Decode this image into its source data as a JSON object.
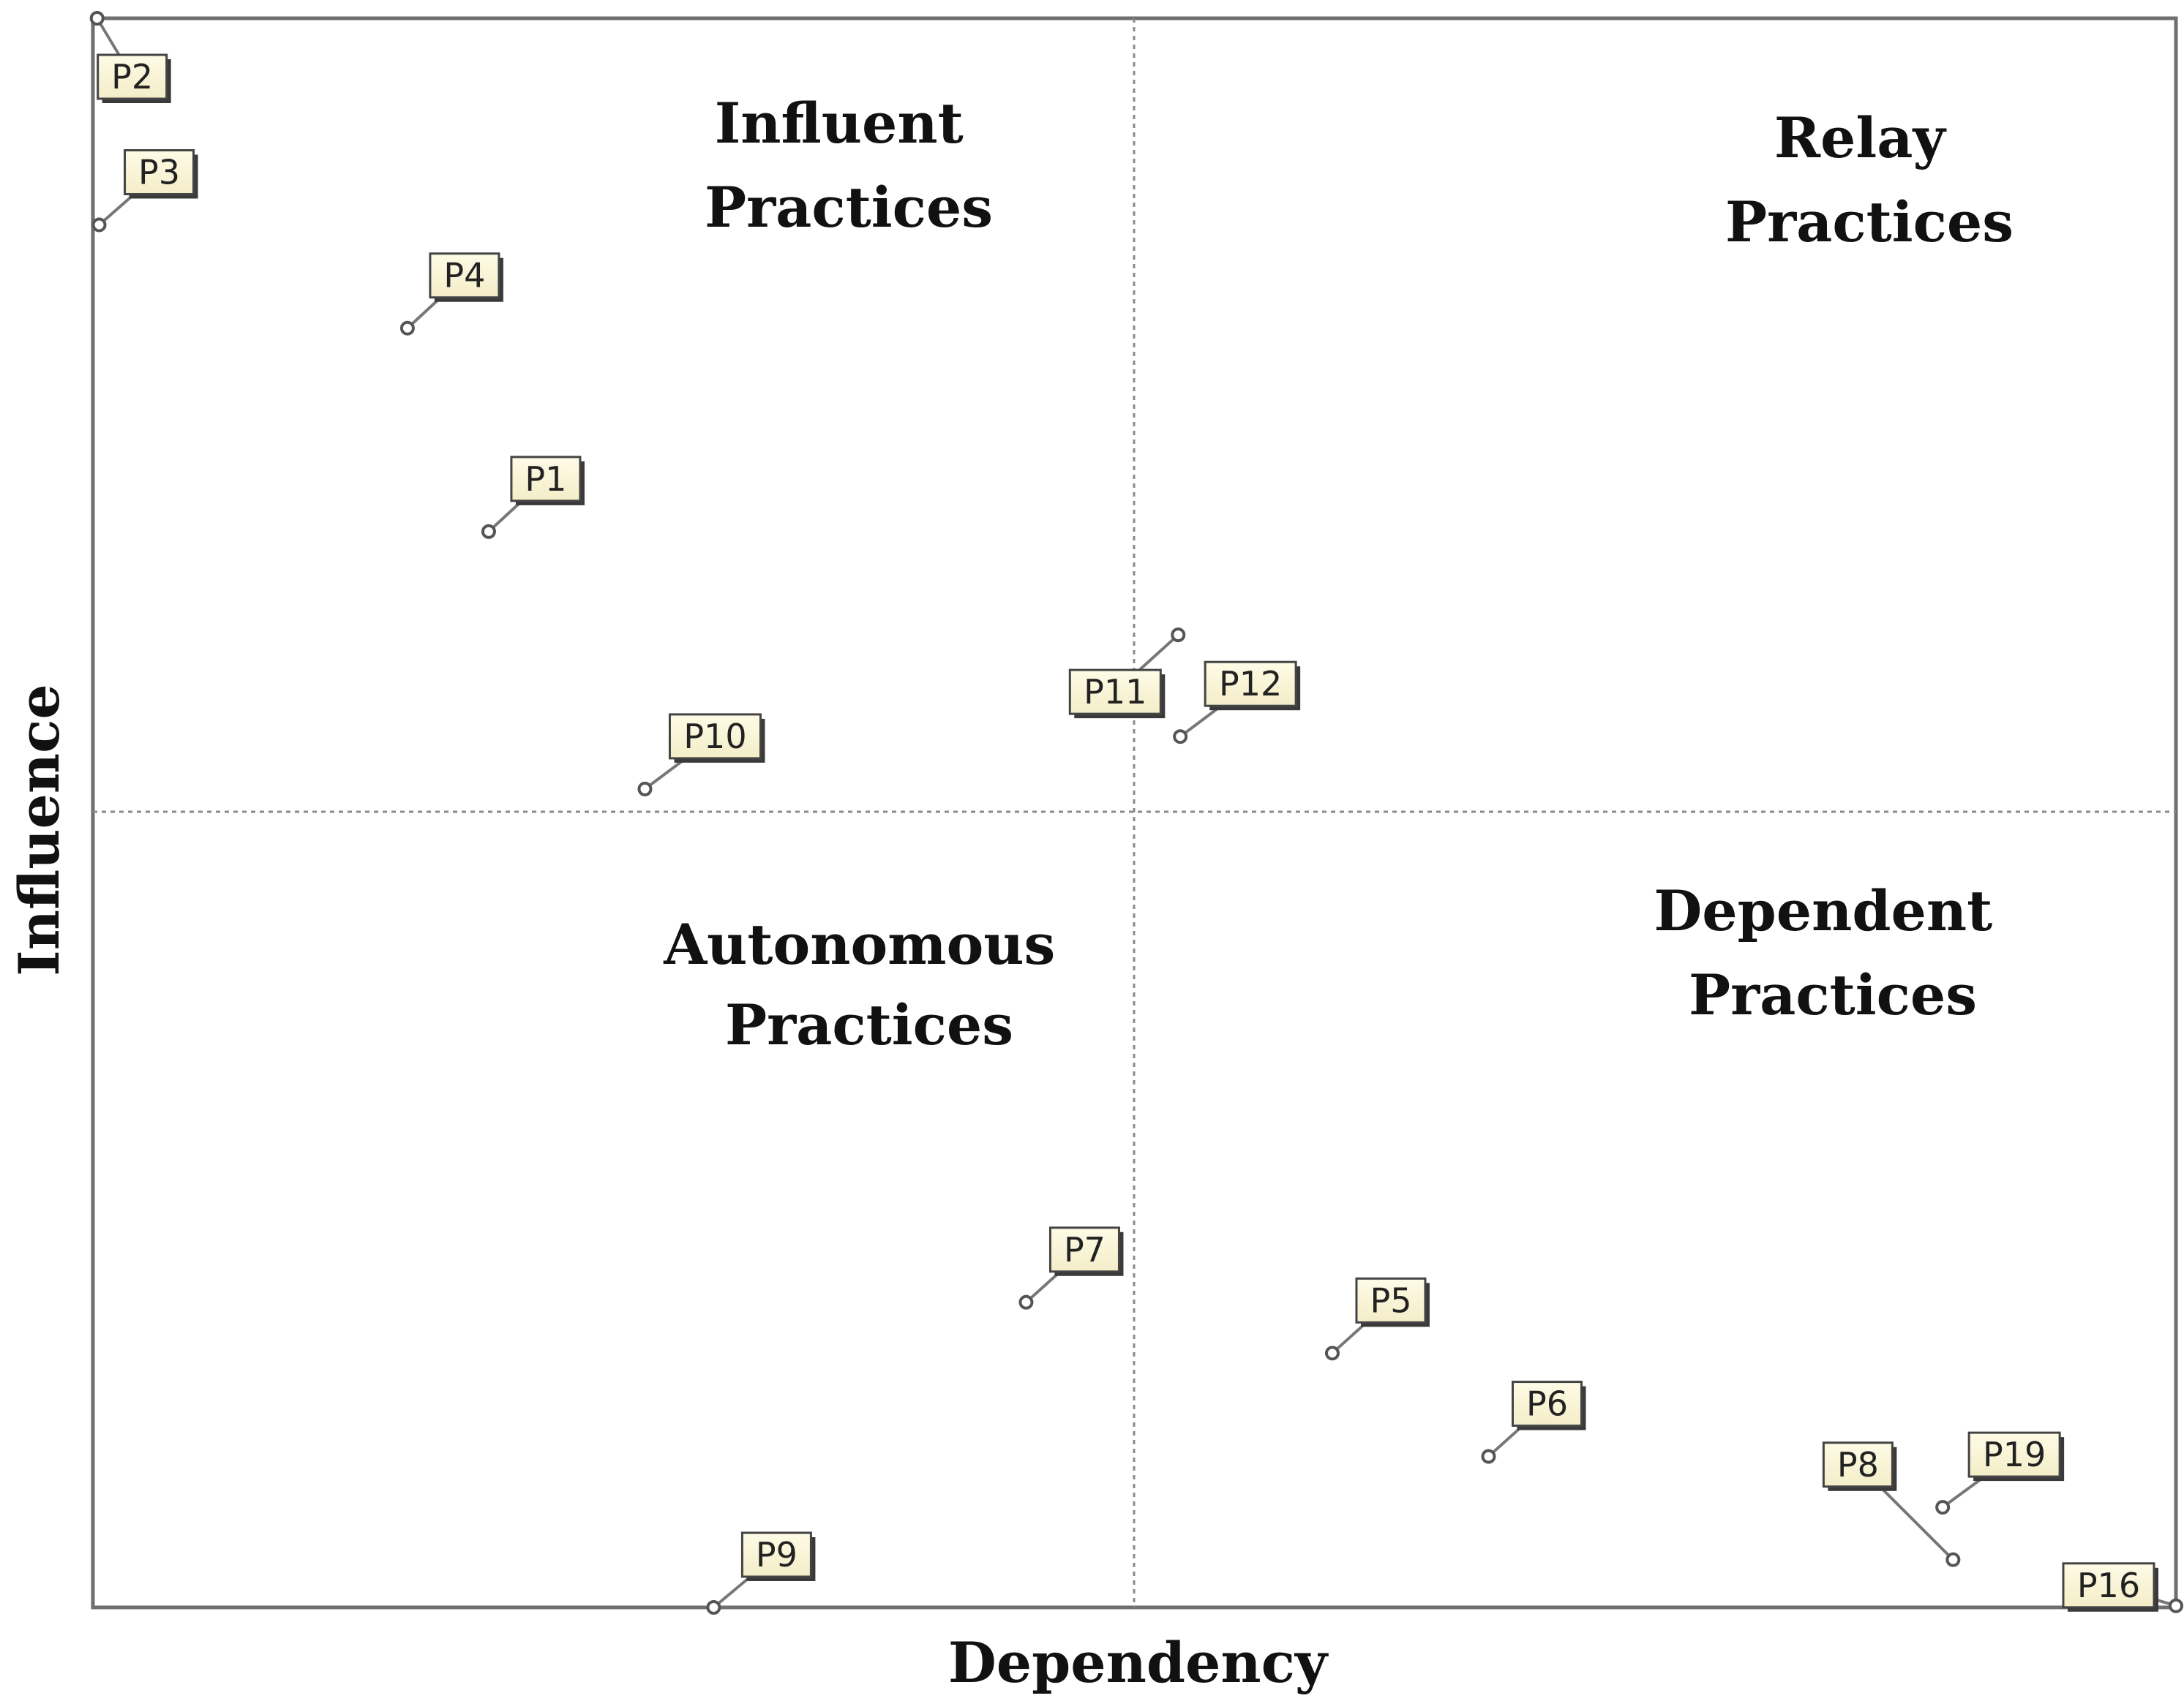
{
  "chart_data": {
    "type": "scatter",
    "title": "",
    "xlabel": "Dependency",
    "ylabel": "Influence",
    "xlim": [
      0,
      1
    ],
    "ylim": [
      0,
      1
    ],
    "grid": false,
    "quadrant_divider": {
      "x": 0.5,
      "y": 0.5
    },
    "quadrants": [
      {
        "name": "influent",
        "lines": [
          "Influent",
          "Practices"
        ]
      },
      {
        "name": "relay",
        "lines": [
          "Relay",
          "Practices"
        ]
      },
      {
        "name": "autonomous",
        "lines": [
          "Autonomous",
          "Practices"
        ]
      },
      {
        "name": "dependent",
        "lines": [
          "Dependent",
          "Practices"
        ]
      }
    ],
    "points": [
      {
        "label": "P2",
        "x": 0.002,
        "y": 1.0
      },
      {
        "label": "P3",
        "x": 0.003,
        "y": 0.87
      },
      {
        "label": "P4",
        "x": 0.151,
        "y": 0.805
      },
      {
        "label": "P1",
        "x": 0.19,
        "y": 0.677
      },
      {
        "label": "P10",
        "x": 0.265,
        "y": 0.515
      },
      {
        "label": "P11",
        "x": 0.521,
        "y": 0.612
      },
      {
        "label": "P12",
        "x": 0.522,
        "y": 0.548
      },
      {
        "label": "P7",
        "x": 0.448,
        "y": 0.192
      },
      {
        "label": "P5",
        "x": 0.595,
        "y": 0.16
      },
      {
        "label": "P6",
        "x": 0.67,
        "y": 0.095
      },
      {
        "label": "P8",
        "x": 0.893,
        "y": 0.03
      },
      {
        "label": "P19",
        "x": 0.888,
        "y": 0.063
      },
      {
        "label": "P16",
        "x": 1.0,
        "y": 0.001
      },
      {
        "label": "P9",
        "x": 0.298,
        "y": 0.0
      }
    ]
  }
}
